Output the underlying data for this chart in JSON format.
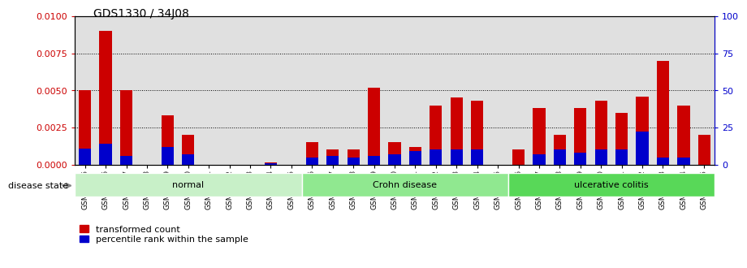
{
  "title": "GDS1330 / 34J08",
  "samples": [
    "GSM29595",
    "GSM29596",
    "GSM29597",
    "GSM29598",
    "GSM29599",
    "GSM29600",
    "GSM29601",
    "GSM29602",
    "GSM29603",
    "GSM29604",
    "GSM29605",
    "GSM29606",
    "GSM29607",
    "GSM29608",
    "GSM29609",
    "GSM29610",
    "GSM29611",
    "GSM29612",
    "GSM29613",
    "GSM29614",
    "GSM29615",
    "GSM29616",
    "GSM29617",
    "GSM29618",
    "GSM29619",
    "GSM29620",
    "GSM29621",
    "GSM29622",
    "GSM29623",
    "GSM29624",
    "GSM29625"
  ],
  "red_values": [
    0.005,
    0.009,
    0.005,
    0.0,
    0.0033,
    0.002,
    0.0,
    0.0,
    0.0,
    0.00015,
    0.0,
    0.0015,
    0.001,
    0.001,
    0.0052,
    0.0015,
    0.0012,
    0.004,
    0.0045,
    0.0043,
    0.0,
    0.001,
    0.0038,
    0.002,
    0.0038,
    0.0043,
    0.0035,
    0.0046,
    0.007,
    0.004,
    0.002
  ],
  "blue_values": [
    0.0011,
    0.0014,
    0.0006,
    0.0,
    0.0012,
    0.0007,
    0.0,
    0.0,
    0.0,
    0.0001,
    0.0,
    0.0005,
    0.0006,
    0.0005,
    0.0006,
    0.0007,
    0.0009,
    0.001,
    0.001,
    0.001,
    0.0,
    0.0,
    0.0007,
    0.001,
    0.0008,
    0.001,
    0.001,
    0.0022,
    0.0005,
    0.0005,
    0.0
  ],
  "groups": [
    {
      "label": "normal",
      "start": 0,
      "end": 11,
      "color": "#c8f0c8"
    },
    {
      "label": "Crohn disease",
      "start": 11,
      "end": 21,
      "color": "#90e890"
    },
    {
      "label": "ulcerative colitis",
      "start": 21,
      "end": 31,
      "color": "#58d858"
    }
  ],
  "ylim_left": [
    0,
    0.01
  ],
  "ylim_right": [
    0,
    100
  ],
  "yticks_left": [
    0,
    0.0025,
    0.005,
    0.0075,
    0.01
  ],
  "yticks_right": [
    0,
    25,
    50,
    75,
    100
  ],
  "bar_color_red": "#cc0000",
  "bar_color_blue": "#0000cc",
  "bar_width": 0.6,
  "bg_color": "#e0e0e0",
  "grid_color": "black",
  "title_color": "black",
  "left_axis_color": "#cc0000",
  "right_axis_color": "#0000cc"
}
